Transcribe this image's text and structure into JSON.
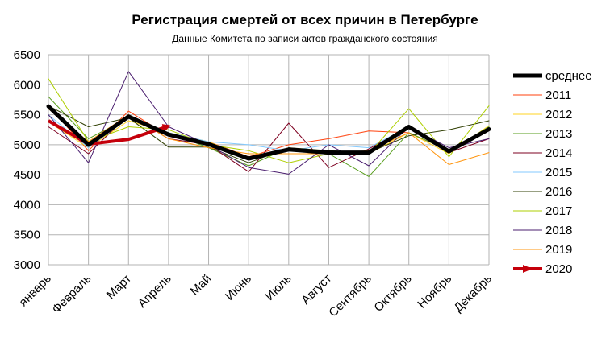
{
  "chart_data": {
    "type": "line",
    "title": "Регистрация смертей от всех причин в Петербурге",
    "subtitle": "Данные Комитета по записи актов гражданского состояния",
    "xlabel": "",
    "ylabel": "",
    "ylim": [
      3000,
      6500
    ],
    "yticks": [
      3000,
      3500,
      4000,
      4500,
      5000,
      5500,
      6000,
      6500
    ],
    "grid": true,
    "legend": "right",
    "categories": [
      "январь",
      "Февраль",
      "Март",
      "Апрель",
      "Май",
      "Июнь",
      "Июль",
      "Август",
      "Сентябрь",
      "Октябрь",
      "Ноябрь",
      "Декабрь"
    ],
    "series": [
      {
        "name": "среднее",
        "color": "#000000",
        "width": 5,
        "values": [
          5640,
          5000,
          5470,
          5170,
          5010,
          4770,
          4920,
          4870,
          4870,
          5300,
          4890,
          5260
        ]
      },
      {
        "name": "2011",
        "color": "#ff420e",
        "width": 1,
        "values": [
          5650,
          4900,
          5560,
          5150,
          5050,
          4800,
          5000,
          5100,
          5230,
          5200,
          4900,
          5250
        ]
      },
      {
        "name": "2012",
        "color": "#ffd320",
        "width": 1,
        "values": [
          5380,
          4950,
          5400,
          5200,
          5050,
          4780,
          4900,
          4850,
          4850,
          5200,
          4850,
          5320
        ]
      },
      {
        "name": "2013",
        "color": "#579d1c",
        "width": 1,
        "values": [
          5800,
          5100,
          5450,
          5200,
          4950,
          4650,
          4950,
          4850,
          4470,
          5200,
          4900,
          5300
        ]
      },
      {
        "name": "2014",
        "color": "#7e0021",
        "width": 1,
        "values": [
          5300,
          4850,
          5500,
          5100,
          5000,
          4550,
          5360,
          4620,
          4930,
          5300,
          4870,
          5100
        ]
      },
      {
        "name": "2015",
        "color": "#83caff",
        "width": 1,
        "values": [
          5500,
          4950,
          5450,
          5200,
          5050,
          5000,
          4900,
          5000,
          4950,
          5300,
          4900,
          5250
        ]
      },
      {
        "name": "2016",
        "color": "#314004",
        "width": 1,
        "values": [
          5650,
          5300,
          5450,
          4960,
          4960,
          4700,
          4950,
          4900,
          4870,
          5150,
          5250,
          5400
        ]
      },
      {
        "name": "2017",
        "color": "#aecf00",
        "width": 1,
        "values": [
          6100,
          5050,
          5300,
          5250,
          5000,
          4900,
          4700,
          4850,
          4850,
          5600,
          4800,
          5650
        ]
      },
      {
        "name": "2018",
        "color": "#4b1f6f",
        "width": 1,
        "values": [
          5500,
          4700,
          6220,
          5300,
          5000,
          4620,
          4510,
          5000,
          4650,
          5300,
          4950,
          5100
        ]
      },
      {
        "name": "2019",
        "color": "#ff950e",
        "width": 1,
        "values": [
          5600,
          5050,
          5500,
          5100,
          4950,
          4850,
          4850,
          4850,
          4900,
          5200,
          4670,
          4870
        ]
      },
      {
        "name": "2020",
        "color": "#c5000b",
        "width": 4,
        "arrow": true,
        "values": [
          5400,
          5010,
          5090,
          5310,
          null,
          null,
          null,
          null,
          null,
          null,
          null,
          null
        ]
      }
    ]
  }
}
